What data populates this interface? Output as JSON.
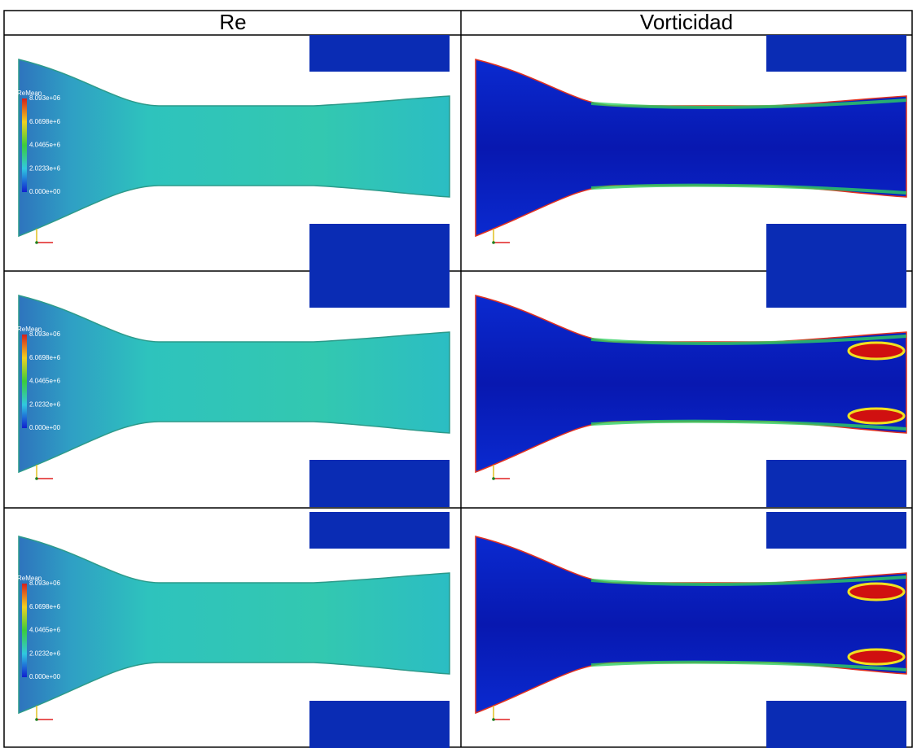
{
  "table": {
    "header": [
      "Re",
      "Vorticidad"
    ],
    "rows": [
      {
        "legend": {
          "title": "ReMean",
          "labels": [
            "8.093e+06",
            "6.0698e+6",
            "4.0465e+6",
            "2.0233e+6",
            "0.000e+00"
          ]
        }
      },
      {
        "legend": {
          "title": "ReMean",
          "labels": [
            "8.093e+06",
            "6.0698e+6",
            "4.0465e+6",
            "2.0232e+6",
            "0.000e+00"
          ]
        }
      },
      {
        "legend": {
          "title": "ReMean",
          "labels": [
            "8.093e+06",
            "6.0698e+6",
            "4.0465e+6",
            "2.0232e+6",
            "0.000e+00"
          ]
        }
      }
    ]
  }
}
